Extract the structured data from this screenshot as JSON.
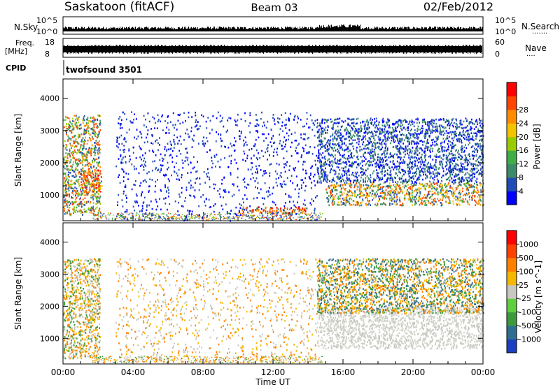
{
  "header": {
    "station": "Saskatoon (fitACF)",
    "beam": "Beam 03",
    "date": "02/Feb/2012"
  },
  "top_panels": {
    "nsky": {
      "left_label": "N.Sky",
      "right_label": "N.Search",
      "right_dots": "·······",
      "left_ticks": [
        "10^5",
        "10^0"
      ],
      "right_ticks": [
        "10^5",
        "10^0"
      ]
    },
    "freq": {
      "left_label": "Freq.",
      "left_unit": "[MHz]",
      "right_label": "Nave",
      "right_dots": "····",
      "left_ticks": [
        "18",
        "8"
      ],
      "right_ticks": [
        "60",
        "0"
      ]
    },
    "cpid": {
      "label": "CPID",
      "value": "twofsound 3501"
    }
  },
  "chart_data": [
    {
      "type": "heatmap",
      "panel": "power",
      "ylabel": "Slant Range [km]",
      "yticks": [
        1000,
        2000,
        3000,
        4000
      ],
      "ylim": [
        200,
        4600
      ],
      "xlim_hours": [
        0,
        24
      ],
      "colorbar": {
        "label": "Power [dB]",
        "ticks": [
          "4",
          "8",
          "12",
          "16",
          "20",
          "24",
          "28"
        ],
        "colors": [
          "#0000ff",
          "#1f4db5",
          "#3d8a6a",
          "#3fae46",
          "#99cc00",
          "#f2c400",
          "#ff8c00",
          "#ff4500",
          "#ff0000"
        ]
      },
      "blobs": [
        {
          "x0": 0.0,
          "x1": 2.1,
          "r0": 400,
          "r1": 3500,
          "colors": [
            "#1f4db5",
            "#3d8a6a",
            "#3fae46",
            "#99cc00",
            "#ff8c00",
            "#ff4500"
          ]
        },
        {
          "x0": 1.0,
          "x1": 2.2,
          "r0": 1100,
          "r1": 1800,
          "colors": [
            "#ff4500",
            "#ff0000",
            "#ff8c00",
            "#f2c400"
          ]
        },
        {
          "x0": 3.0,
          "x1": 14.5,
          "r0": 200,
          "r1": 3600,
          "colors": [
            "#0000ff",
            "#1f4db5"
          ]
        },
        {
          "x0": 10.2,
          "x1": 14.0,
          "r0": 450,
          "r1": 650,
          "colors": [
            "#ff8c00",
            "#ff4500",
            "#ff0000",
            "#3d8a6a"
          ]
        },
        {
          "x0": 14.5,
          "x1": 24.0,
          "r0": 1400,
          "r1": 3400,
          "colors": [
            "#0000ff",
            "#1f4db5",
            "#3d8a6a"
          ]
        },
        {
          "x0": 15.0,
          "x1": 24.0,
          "r0": 700,
          "r1": 1400,
          "colors": [
            "#ff4500",
            "#ff8c00",
            "#f2c400",
            "#3fae46",
            "#3d8a6a",
            "#1f4db5"
          ]
        }
      ]
    },
    {
      "type": "heatmap",
      "panel": "velocity",
      "ylabel": "Slant Range [km]",
      "yticks": [
        1000,
        2000,
        3000,
        4000
      ],
      "ylim": [
        200,
        4600
      ],
      "xlim_hours": [
        0,
        24
      ],
      "xticks": [
        "00:00",
        "04:00",
        "08:00",
        "12:00",
        "16:00",
        "20:00",
        "00:00"
      ],
      "xlabel": "Time UT",
      "colorbar": {
        "label": "Velocity [m s^-1]",
        "ticks": [
          "1000",
          "500",
          "100",
          "25",
          "-25",
          "-100",
          "-500",
          "-1000"
        ],
        "colors": [
          "#1c3fbf",
          "#2f6e8f",
          "#3c9a3c",
          "#5fcf3f",
          "#c8c8c0",
          "#f5b800",
          "#ff8000",
          "#ff4000",
          "#ff0000"
        ]
      },
      "blobs": [
        {
          "x0": 0.0,
          "x1": 2.1,
          "r0": 400,
          "r1": 3500,
          "colors": [
            "#ff8000",
            "#f5b800",
            "#c8c8c0",
            "#3c9a3c"
          ]
        },
        {
          "x0": 3.0,
          "x1": 14.5,
          "r0": 250,
          "r1": 3500,
          "colors": [
            "#f5b800",
            "#c8c8c0",
            "#ff8000"
          ]
        },
        {
          "x0": 14.5,
          "x1": 24.0,
          "r0": 700,
          "r1": 2000,
          "colors": [
            "#c8c8c0",
            "#d4d4cc"
          ]
        },
        {
          "x0": 14.5,
          "x1": 24.0,
          "r0": 1800,
          "r1": 3500,
          "colors": [
            "#3c9a3c",
            "#ff8000",
            "#f5b800",
            "#2f6e8f"
          ]
        }
      ]
    }
  ]
}
